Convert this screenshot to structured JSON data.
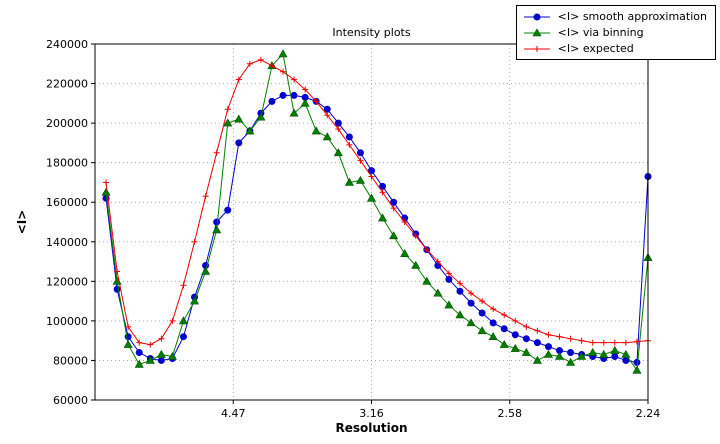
{
  "window": {
    "background": "#ffffff"
  },
  "chart_data": {
    "type": "line",
    "title": "Intensity plots",
    "xlabel": "Resolution",
    "ylabel": "<I>",
    "grid": true,
    "legend_position": "top-right",
    "x_axis": {
      "min": 0.0,
      "max": 0.2,
      "note": "linear in 1/d^2; tick labels show resolution d in Angstrom",
      "ticks": [
        {
          "label": "4.47",
          "value": 0.05
        },
        {
          "label": "3.16",
          "value": 0.1
        },
        {
          "label": "2.58",
          "value": 0.15
        },
        {
          "label": "2.24",
          "value": 0.2
        }
      ]
    },
    "y_axis": {
      "min": 60000,
      "max": 240000,
      "tick_step": 20000
    },
    "x": [
      0.004,
      0.008,
      0.012,
      0.016,
      0.02,
      0.024,
      0.028,
      0.032,
      0.036,
      0.04,
      0.044,
      0.048,
      0.052,
      0.056,
      0.06,
      0.064,
      0.068,
      0.072,
      0.076,
      0.08,
      0.084,
      0.088,
      0.092,
      0.096,
      0.1,
      0.104,
      0.108,
      0.112,
      0.116,
      0.12,
      0.124,
      0.128,
      0.132,
      0.136,
      0.14,
      0.144,
      0.148,
      0.152,
      0.156,
      0.16,
      0.164,
      0.168,
      0.172,
      0.176,
      0.18,
      0.184,
      0.188,
      0.192,
      0.196,
      0.2
    ],
    "series": [
      {
        "name": "<I> smooth approximation",
        "color": "#0000cd",
        "marker": "circle",
        "values": [
          162000,
          116000,
          92000,
          84000,
          81000,
          80000,
          81000,
          92000,
          112000,
          128000,
          150000,
          156000,
          190000,
          196000,
          205000,
          211000,
          214000,
          214000,
          213000,
          211000,
          207000,
          200000,
          193000,
          185000,
          176000,
          168000,
          160000,
          152000,
          144000,
          136000,
          128000,
          121000,
          115000,
          109000,
          104000,
          99000,
          96000,
          93000,
          91000,
          89000,
          87000,
          85000,
          84000,
          83000,
          82000,
          81000,
          82000,
          80000,
          79000,
          173000
        ]
      },
      {
        "name": "<I> via binning",
        "color": "#008000",
        "marker": "triangle",
        "values": [
          165000,
          120000,
          88000,
          78000,
          80000,
          83000,
          82000,
          100000,
          110000,
          125000,
          146000,
          200000,
          202000,
          196000,
          203000,
          229000,
          235000,
          205000,
          210000,
          196000,
          193000,
          185000,
          170000,
          171000,
          162000,
          152000,
          143000,
          134000,
          128000,
          120000,
          114000,
          108000,
          103000,
          99000,
          95000,
          92000,
          88000,
          86000,
          84000,
          80000,
          83000,
          82000,
          79000,
          82000,
          84000,
          83000,
          85000,
          83000,
          75000,
          132000
        ]
      },
      {
        "name": "<I> expected",
        "color": "#ee0000",
        "marker": "plus",
        "values": [
          170000,
          125000,
          97000,
          89000,
          88000,
          91000,
          100000,
          118000,
          140000,
          163000,
          185000,
          207000,
          222000,
          230000,
          232000,
          229000,
          226000,
          222000,
          217000,
          211000,
          204000,
          197000,
          189000,
          181000,
          173000,
          165000,
          157000,
          150000,
          143000,
          136000,
          130000,
          124000,
          119000,
          114000,
          110000,
          106000,
          103000,
          100000,
          97000,
          95000,
          93000,
          92000,
          91000,
          90000,
          89000,
          89000,
          89000,
          89000,
          89500,
          90000
        ]
      }
    ]
  }
}
